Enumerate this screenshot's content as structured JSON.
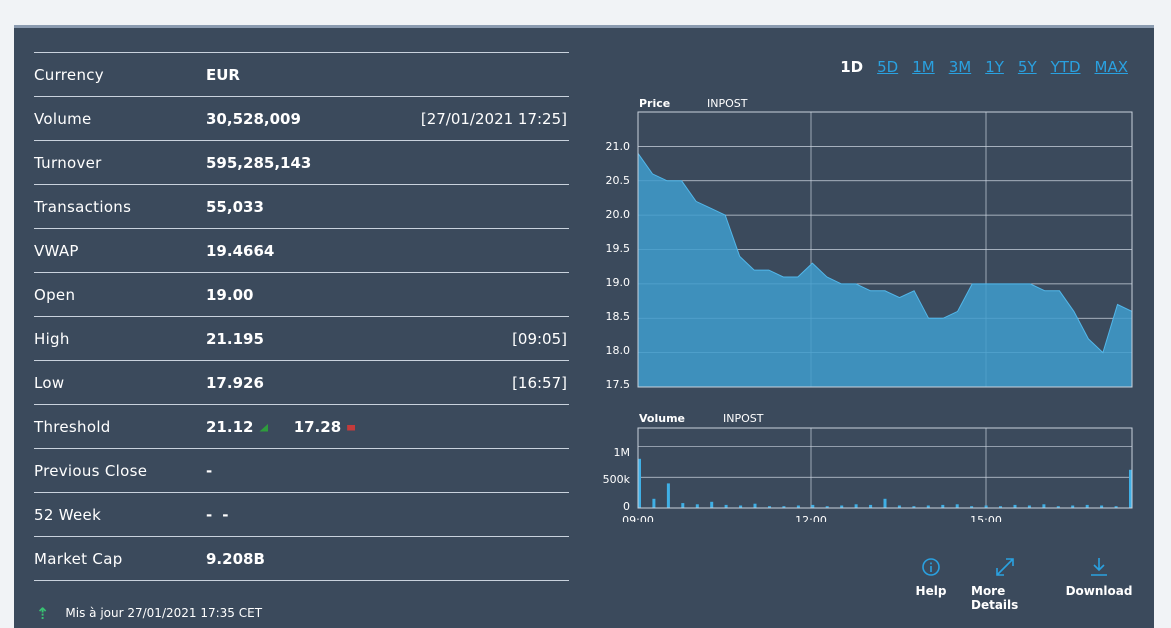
{
  "stats": [
    {
      "label": "Currency",
      "value": "EUR",
      "extra": ""
    },
    {
      "label": "Volume",
      "value": "30,528,009",
      "extra": "[27/01/2021 17:25]"
    },
    {
      "label": "Turnover",
      "value": "595,285,143",
      "extra": ""
    },
    {
      "label": "Transactions",
      "value": "55,033",
      "extra": ""
    },
    {
      "label": "VWAP",
      "value": "19.4664",
      "extra": ""
    },
    {
      "label": "Open",
      "value": "19.00",
      "extra": ""
    },
    {
      "label": "High",
      "value": "21.195",
      "extra": "[09:05]"
    },
    {
      "label": "Low",
      "value": "17.926",
      "extra": "[16:57]"
    },
    {
      "label": "Threshold",
      "value_up": "21.12",
      "value_down": "17.28"
    },
    {
      "label": "Previous Close",
      "value": "-",
      "extra": ""
    },
    {
      "label": "52 Week",
      "value_low": "-",
      "value_high": "-"
    },
    {
      "label": "Market Cap",
      "value": "9.208B",
      "extra": ""
    }
  ],
  "updated_text": "Mis à jour 27/01/2021 17:35 CET",
  "periods": [
    "1D",
    "5D",
    "1M",
    "3M",
    "1Y",
    "5Y",
    "YTD",
    "MAX"
  ],
  "active_period": "1D",
  "price_chart": {
    "title": "Price",
    "instrument": "INPOST",
    "y_ticks": [
      "21.0",
      "20.5",
      "20.0",
      "19.5",
      "19.0",
      "18.5",
      "18.0",
      "17.5"
    ],
    "ylim": [
      17.5,
      21.5
    ]
  },
  "volume_chart": {
    "title": "Volume",
    "instrument": "INPOST",
    "y_ticks": [
      "1M",
      "500k",
      "0"
    ],
    "x_ticks": [
      "09:00",
      "12:00",
      "15:00"
    ]
  },
  "chart_data": [
    {
      "type": "area",
      "title": "Price",
      "series": [
        {
          "name": "INPOST",
          "x": [
            "09:00",
            "09:15",
            "09:30",
            "09:45",
            "10:00",
            "10:15",
            "10:30",
            "10:45",
            "11:00",
            "11:15",
            "11:30",
            "11:45",
            "12:00",
            "12:15",
            "12:30",
            "12:45",
            "13:00",
            "13:15",
            "13:30",
            "13:45",
            "14:00",
            "14:15",
            "14:30",
            "14:45",
            "15:00",
            "15:15",
            "15:30",
            "15:45",
            "16:00",
            "16:15",
            "16:30",
            "16:45",
            "17:00",
            "17:15",
            "17:30"
          ],
          "values": [
            20.9,
            20.6,
            20.5,
            20.5,
            20.2,
            20.1,
            20.0,
            19.4,
            19.2,
            19.2,
            19.1,
            19.1,
            19.3,
            19.1,
            19.0,
            19.0,
            18.9,
            18.9,
            18.8,
            18.9,
            18.5,
            18.5,
            18.6,
            19.0,
            19.0,
            19.0,
            19.0,
            19.0,
            18.9,
            18.9,
            18.6,
            18.2,
            18.0,
            18.7,
            18.6
          ]
        }
      ],
      "ylim": [
        17.5,
        21.5
      ]
    },
    {
      "type": "bar",
      "title": "Volume",
      "series": [
        {
          "name": "INPOST",
          "values": [
            800000,
            150000,
            400000,
            80000,
            60000,
            100000,
            50000,
            40000,
            70000,
            30000,
            30000,
            40000,
            50000,
            30000,
            40000,
            60000,
            50000,
            150000,
            40000,
            30000,
            40000,
            50000,
            60000,
            30000,
            40000,
            30000,
            50000,
            40000,
            60000,
            30000,
            40000,
            50000,
            40000,
            30000,
            620000
          ]
        }
      ]
    }
  ],
  "actions": {
    "help": "Help",
    "more": "More Details",
    "download": "Download"
  },
  "colors": {
    "panel": "#3b4a5c",
    "accent": "#2aa1e0",
    "area": "#3f9ccd"
  }
}
